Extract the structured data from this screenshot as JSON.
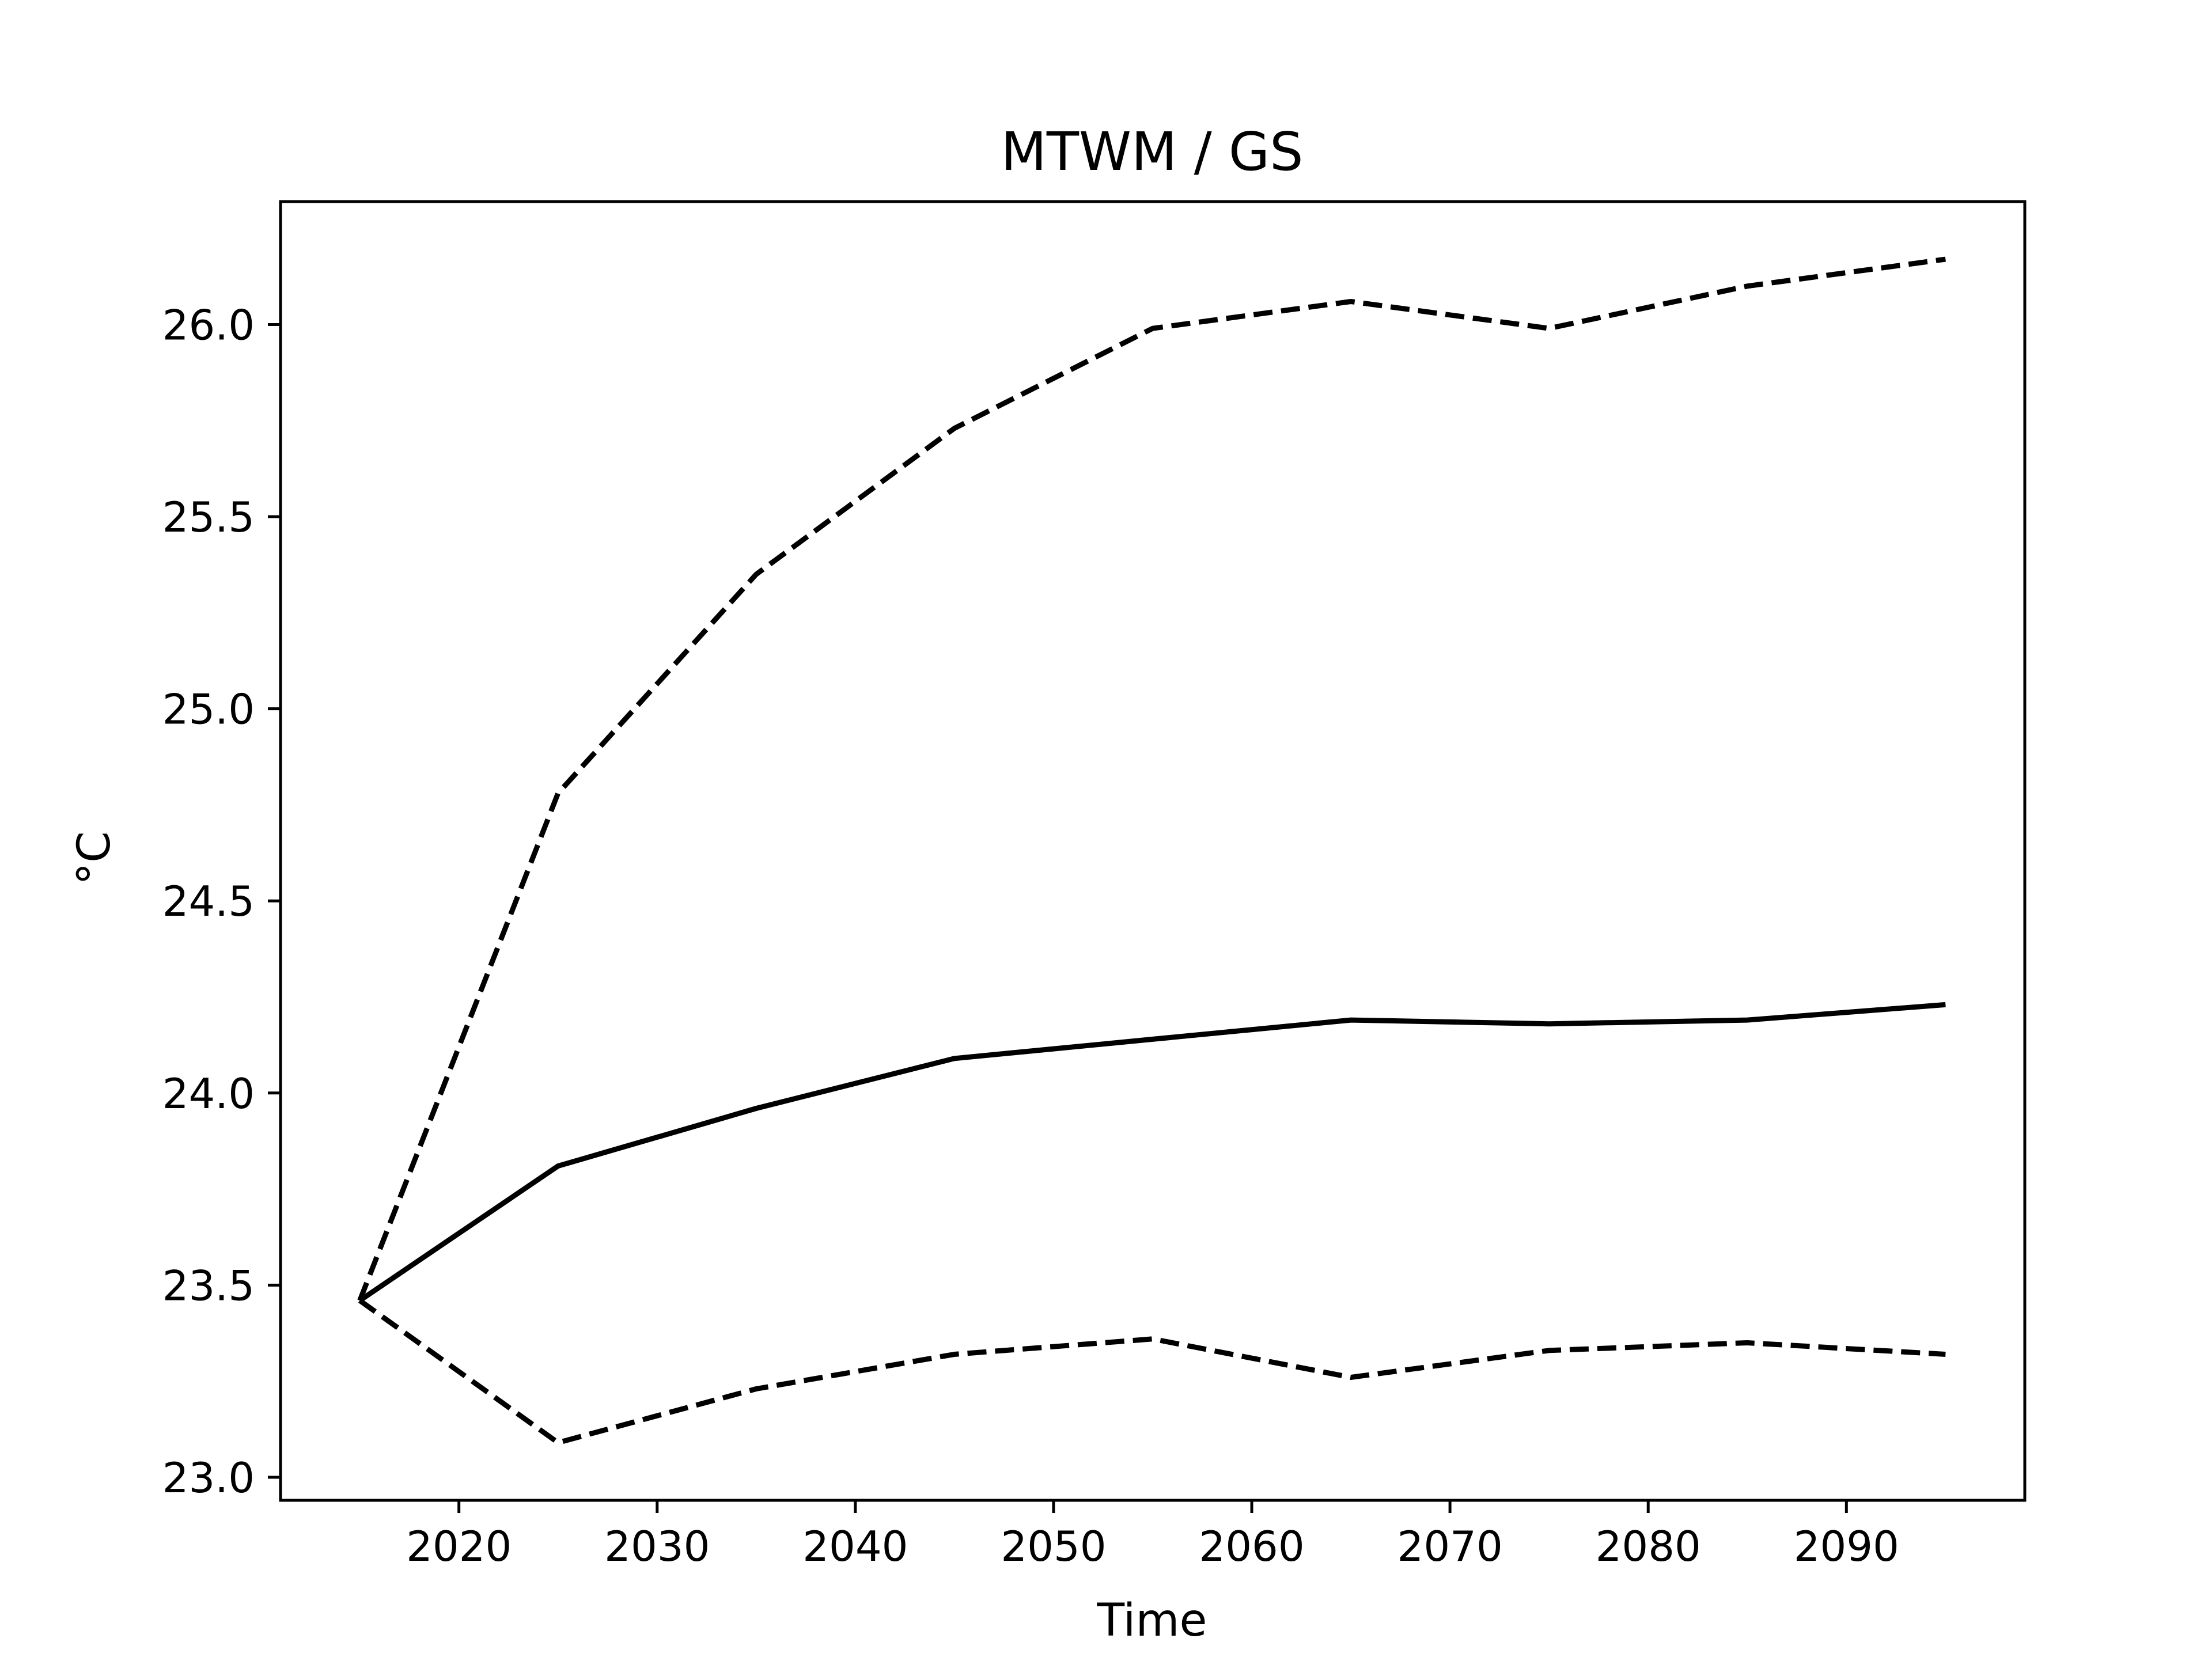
{
  "chart_data": {
    "type": "line",
    "title": "MTWM / GS",
    "xlabel": "Time",
    "ylabel": "°C",
    "xlim": [
      2011,
      2099
    ],
    "ylim": [
      22.94,
      26.32
    ],
    "xticks": [
      2020,
      2030,
      2040,
      2050,
      2060,
      2070,
      2080,
      2090
    ],
    "xtick_labels": [
      "2020",
      "2030",
      "2040",
      "2050",
      "2060",
      "2070",
      "2080",
      "2090"
    ],
    "yticks": [
      23.0,
      23.5,
      24.0,
      24.5,
      25.0,
      25.5,
      26.0
    ],
    "ytick_labels": [
      "23.0",
      "23.5",
      "24.0",
      "24.5",
      "25.0",
      "25.5",
      "26.0"
    ],
    "grid": false,
    "legend": "none",
    "x": [
      2015,
      2025,
      2035,
      2045,
      2055,
      2065,
      2075,
      2085,
      2095
    ],
    "series": [
      {
        "style": "solid",
        "color": "#000000",
        "values": [
          23.46,
          23.81,
          23.96,
          24.09,
          24.14,
          24.19,
          24.18,
          24.19,
          24.23
        ]
      },
      {
        "style": "dashed",
        "color": "#000000",
        "values": [
          23.46,
          24.78,
          25.35,
          25.73,
          25.99,
          26.06,
          25.99,
          26.1,
          26.17
        ]
      },
      {
        "style": "dashed",
        "color": "#000000",
        "values": [
          23.46,
          23.09,
          23.23,
          23.32,
          23.36,
          23.26,
          23.33,
          23.35,
          23.32
        ]
      }
    ]
  }
}
